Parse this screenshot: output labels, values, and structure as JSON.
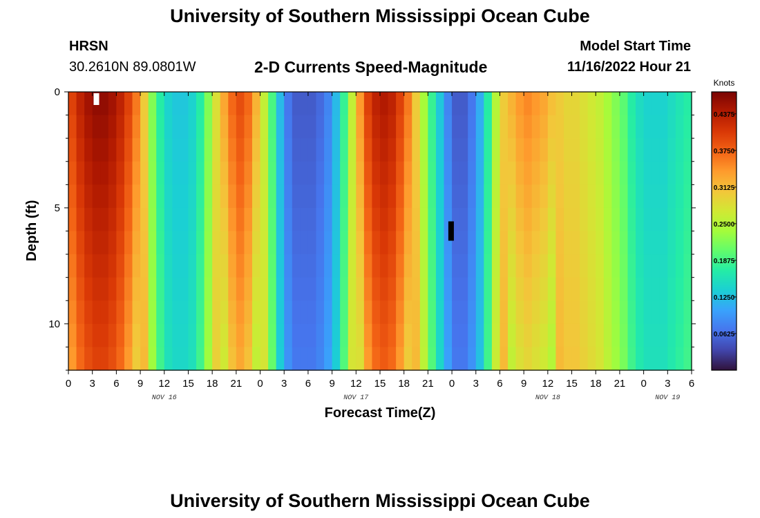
{
  "header": {
    "title": "University of Southern Mississippi Ocean Cube",
    "station": "HRSN",
    "coords": "30.2610N  89.0801W",
    "subtitle": "2-D Currents Speed-Magnitude",
    "model_start_label": "Model Start Time",
    "model_start_value": "11/16/2022 Hour 21"
  },
  "footer": {
    "title": "University of Southern Mississippi Ocean Cube"
  },
  "chart_data": {
    "type": "heatmap",
    "title": "2-D Currents Speed-Magnitude",
    "xlabel": "Forecast Time(Z)",
    "ylabel": "Depth (ft)",
    "x_range_hours": [
      0,
      78
    ],
    "x_tick_labels": [
      "0",
      "3",
      "6",
      "9",
      "12",
      "15",
      "18",
      "21",
      "0",
      "3",
      "6",
      "9",
      "12",
      "15",
      "18",
      "21",
      "0",
      "3",
      "6",
      "9",
      "12",
      "15",
      "18",
      "21",
      "0",
      "3",
      "6"
    ],
    "day_labels": [
      {
        "label": "NOV 16",
        "at_hour": 12
      },
      {
        "label": "NOV 17",
        "at_hour": 36
      },
      {
        "label": "NOV 18",
        "at_hour": 60
      },
      {
        "label": "NOV 19",
        "at_hour": 75
      }
    ],
    "y_range_ft": [
      0,
      12
    ],
    "y_tick_labels": [
      "0",
      "5",
      "10"
    ],
    "y_tick_values": [
      0,
      5,
      10
    ],
    "colorbar": {
      "units": "Knots",
      "min": 0,
      "max": 0.475,
      "tick_labels": [
        "0.4375",
        "0.3750",
        "0.3125",
        "0.2500",
        "0.1875",
        "0.1250",
        "0.0625"
      ],
      "tick_values": [
        0.4375,
        0.375,
        0.3125,
        0.25,
        0.1875,
        0.125,
        0.0625
      ],
      "colormap_stops": [
        "#30123b",
        "#4145ab",
        "#4675ed",
        "#39a2fc",
        "#1bcfd4",
        "#24eca6",
        "#61fc6c",
        "#a4fc3b",
        "#d1e834",
        "#f3c63a",
        "#fe9b2d",
        "#f36315",
        "#d93806",
        "#b11901",
        "#7a0403"
      ]
    },
    "surface_speed_by_hour": {
      "hours": [
        0,
        1,
        2,
        3,
        4,
        5,
        6,
        7,
        8,
        9,
        10,
        11,
        12,
        13,
        14,
        15,
        16,
        17,
        18,
        19,
        20,
        21,
        22,
        23,
        24,
        25,
        26,
        27,
        28,
        29,
        30,
        31,
        32,
        33,
        34,
        35,
        36,
        37,
        38,
        39,
        40,
        41,
        42,
        43,
        44,
        45,
        46,
        47,
        48,
        49,
        50,
        51,
        52,
        53,
        54,
        55,
        56,
        57,
        58,
        59,
        60,
        61,
        62,
        63,
        64,
        65,
        66,
        67,
        68,
        69,
        70,
        71,
        72,
        73,
        74,
        75,
        76,
        77
      ],
      "speed_knots": [
        0.4,
        0.43,
        0.45,
        0.46,
        0.46,
        0.45,
        0.43,
        0.4,
        0.36,
        0.3,
        0.22,
        0.17,
        0.14,
        0.13,
        0.13,
        0.14,
        0.17,
        0.22,
        0.28,
        0.33,
        0.37,
        0.39,
        0.37,
        0.32,
        0.26,
        0.19,
        0.12,
        0.07,
        0.05,
        0.05,
        0.05,
        0.06,
        0.08,
        0.12,
        0.18,
        0.26,
        0.34,
        0.4,
        0.43,
        0.44,
        0.43,
        0.4,
        0.36,
        0.3,
        0.24,
        0.18,
        0.13,
        0.08,
        0.05,
        0.05,
        0.07,
        0.11,
        0.17,
        0.25,
        0.3,
        0.32,
        0.34,
        0.35,
        0.34,
        0.33,
        0.31,
        0.3,
        0.29,
        0.29,
        0.28,
        0.27,
        0.26,
        0.24,
        0.22,
        0.2,
        0.17,
        0.15,
        0.14,
        0.14,
        0.14,
        0.15,
        0.16,
        0.17
      ]
    },
    "n_depth_layers": 12,
    "markers": [
      {
        "hour": 3.5,
        "depth_ft": 0.3,
        "color": "#ffffff"
      },
      {
        "hour": 47.9,
        "depth_ft": 6.0,
        "color": "#000000"
      }
    ]
  }
}
